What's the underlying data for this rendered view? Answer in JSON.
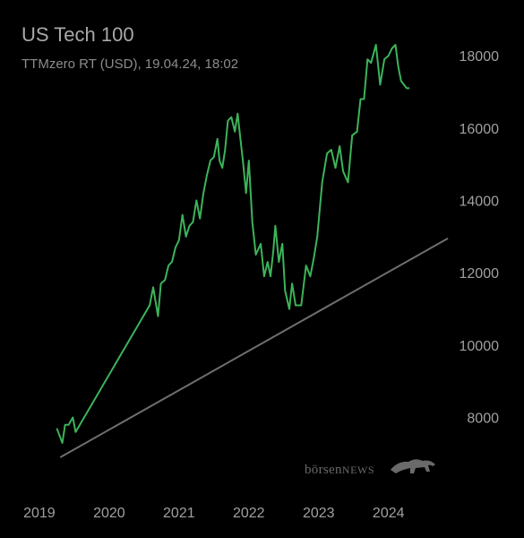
{
  "title": "US Tech 100",
  "subtitle": "TTMzero RT (USD), 19.04.24, 18:02",
  "watermark": {
    "part1": "börsen",
    "part2": "NEWS"
  },
  "colors": {
    "background": "#000000",
    "line": "#3cb45a",
    "trendline": "#6e6e6e",
    "text": "#a0a0a0"
  },
  "chart_data": {
    "type": "line",
    "title": "US Tech 100",
    "subtitle": "TTMzero RT (USD), 19.04.24, 18:02",
    "xlabel": "",
    "ylabel": "",
    "x_ticks": [
      "2019",
      "2020",
      "2021",
      "2022",
      "2023",
      "2024"
    ],
    "y_ticks": [
      8000,
      10000,
      12000,
      14000,
      16000,
      18000
    ],
    "xlim": [
      2018.95,
      2024.85
    ],
    "ylim": [
      6900,
      18300
    ],
    "grid": false,
    "y_axis_position": "right",
    "series": [
      {
        "name": "",
        "x": [
          2019.25,
          2019.33,
          2019.37,
          2019.42,
          2019.48,
          2019.52,
          2019.55,
          2020.58,
          2020.63,
          2020.7,
          2020.74,
          2020.8,
          2020.85,
          2020.9,
          2020.95,
          2021.0,
          2021.05,
          2021.1,
          2021.15,
          2021.2,
          2021.25,
          2021.3,
          2021.35,
          2021.4,
          2021.45,
          2021.5,
          2021.55,
          2021.58,
          2021.62,
          2021.66,
          2021.7,
          2021.75,
          2021.8,
          2021.84,
          2021.88,
          2021.92,
          2021.96,
          2022.0,
          2022.05,
          2022.1,
          2022.17,
          2022.22,
          2022.27,
          2022.31,
          2022.35,
          2022.38,
          2022.43,
          2022.48,
          2022.52,
          2022.58,
          2022.62,
          2022.67,
          2022.75,
          2022.82,
          2022.88,
          2022.93,
          2022.98,
          2023.05,
          2023.12,
          2023.18,
          2023.24,
          2023.3,
          2023.35,
          2023.42,
          2023.48,
          2023.55,
          2023.6,
          2023.65,
          2023.7,
          2023.75,
          2023.82,
          2023.88,
          2023.94,
          2024.0,
          2024.05,
          2024.1,
          2024.14,
          2024.18,
          2024.22,
          2024.26,
          2024.3
        ],
        "values": [
          7700,
          7300,
          7800,
          7800,
          8000,
          7600,
          7700,
          11100,
          11600,
          10800,
          11700,
          11800,
          12200,
          12300,
          12700,
          12900,
          13600,
          13000,
          13300,
          13400,
          14000,
          13500,
          14200,
          14700,
          15100,
          15200,
          15700,
          15100,
          14900,
          15400,
          16200,
          16300,
          15900,
          16400,
          15700,
          15000,
          14200,
          15100,
          13400,
          12500,
          12800,
          11900,
          12300,
          11900,
          12600,
          13300,
          12300,
          12800,
          11500,
          11000,
          11700,
          11100,
          11100,
          12200,
          11900,
          12400,
          13000,
          14500,
          15300,
          15400,
          14900,
          15500,
          14800,
          14500,
          15800,
          15900,
          16800,
          16800,
          17900,
          17800,
          18300,
          17200,
          17900,
          18000,
          18200,
          18300,
          17700,
          17300,
          17200,
          17100,
          17100
        ]
      }
    ],
    "trendline": {
      "x": [
        2019.3,
        2024.85
      ],
      "values": [
        6900,
        12950
      ]
    }
  }
}
